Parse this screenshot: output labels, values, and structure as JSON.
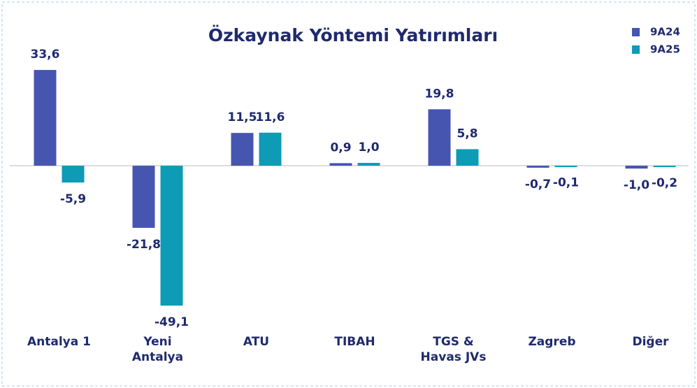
{
  "chart_data": {
    "type": "bar",
    "title": "Özkaynak Yöntemi Yatırımları",
    "categories": [
      "Antalya 1",
      "Yeni Antalya",
      "ATU",
      "TIBAH",
      "TGS & Havas JVs",
      "Zagreb",
      "Diğer"
    ],
    "series": [
      {
        "name": "9A24",
        "color": "#4655b0",
        "values": [
          33.6,
          -21.8,
          11.5,
          0.9,
          19.8,
          -0.7,
          -1.0
        ],
        "value_labels": [
          "33,6",
          "-21,8",
          "11,5",
          "0,9",
          "19,8",
          "-0,7",
          "-1,0"
        ]
      },
      {
        "name": "9A25",
        "color": "#0e9bb6",
        "values": [
          -5.9,
          -49.1,
          11.6,
          1.0,
          5.8,
          -0.1,
          -0.2
        ],
        "value_labels": [
          "-5,9",
          "-49,1",
          "11,6",
          "1,0",
          "5,8",
          "-0,1",
          "-0,2"
        ]
      }
    ],
    "ylim": [
      -52,
      40
    ],
    "legend": "top-right"
  }
}
